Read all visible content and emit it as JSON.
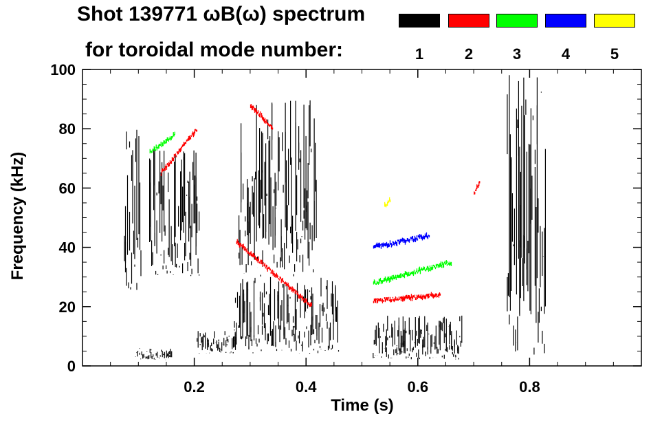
{
  "title_line1": "Shot 139771 ωB(ω) spectrum",
  "title_line2": "for toroidal mode number:",
  "legend": [
    {
      "label": "1",
      "color": "#000000"
    },
    {
      "label": "2",
      "color": "#ff0000"
    },
    {
      "label": "3",
      "color": "#00ff00"
    },
    {
      "label": "4",
      "color": "#0000ff"
    },
    {
      "label": "5",
      "color": "#ffff00"
    }
  ],
  "chart_data": {
    "type": "heatmap",
    "title": "Shot 139771 ωB(ω) spectrum",
    "subtitle": "for toroidal mode number:",
    "xlabel": "Time (s)",
    "ylabel": "Frequency (kHz)",
    "xlim": [
      0.0,
      1.0
    ],
    "ylim": [
      0,
      100
    ],
    "x_ticks": [
      0.2,
      0.4,
      0.6,
      0.8
    ],
    "x_tick_labels": [
      "0.2",
      "0.4",
      "0.6",
      "0.8"
    ],
    "y_ticks": [
      0,
      20,
      40,
      60,
      80,
      100
    ],
    "y_tick_labels": [
      "0",
      "20",
      "40",
      "60",
      "80",
      "100"
    ],
    "grid": false,
    "series": [
      {
        "name": "1",
        "color": "#000000",
        "regions": [
          {
            "t": [
              0.075,
              0.105
            ],
            "f": [
              25,
              80
            ]
          },
          {
            "t": [
              0.12,
              0.21
            ],
            "f": [
              30,
              75
            ]
          },
          {
            "t": [
              0.095,
              0.16
            ],
            "f": [
              2,
              6
            ]
          },
          {
            "t": [
              0.205,
              0.275
            ],
            "f": [
              4,
              12
            ]
          },
          {
            "t": [
              0.27,
              0.46
            ],
            "f": [
              4,
              30
            ]
          },
          {
            "t": [
              0.28,
              0.42
            ],
            "f": [
              30,
              90
            ]
          },
          {
            "t": [
              0.52,
              0.68
            ],
            "f": [
              2,
              17
            ]
          },
          {
            "t": [
              0.76,
              0.83
            ],
            "f": [
              2,
              100
            ]
          }
        ]
      },
      {
        "name": "2",
        "color": "#ff0000",
        "ridges": [
          {
            "t": [
              0.14,
              0.205
            ],
            "f": [
              65,
              80
            ]
          },
          {
            "t": [
              0.275,
              0.41
            ],
            "f": [
              42,
              20
            ]
          },
          {
            "t": [
              0.3,
              0.34
            ],
            "f": [
              88,
              80
            ]
          },
          {
            "t": [
              0.52,
              0.64
            ],
            "f": [
              22,
              24
            ]
          },
          {
            "t": [
              0.7,
              0.71
            ],
            "f": [
              58,
              62
            ]
          }
        ]
      },
      {
        "name": "3",
        "color": "#00ff00",
        "ridges": [
          {
            "t": [
              0.12,
              0.165
            ],
            "f": [
              72,
              78
            ]
          },
          {
            "t": [
              0.52,
              0.66
            ],
            "f": [
              28,
              35
            ]
          }
        ]
      },
      {
        "name": "4",
        "color": "#0000ff",
        "ridges": [
          {
            "t": [
              0.52,
              0.62
            ],
            "f": [
              40,
              44
            ]
          }
        ]
      },
      {
        "name": "5",
        "color": "#ffff00",
        "ridges": [
          {
            "t": [
              0.54,
              0.55
            ],
            "f": [
              54,
              56
            ]
          }
        ]
      }
    ]
  }
}
